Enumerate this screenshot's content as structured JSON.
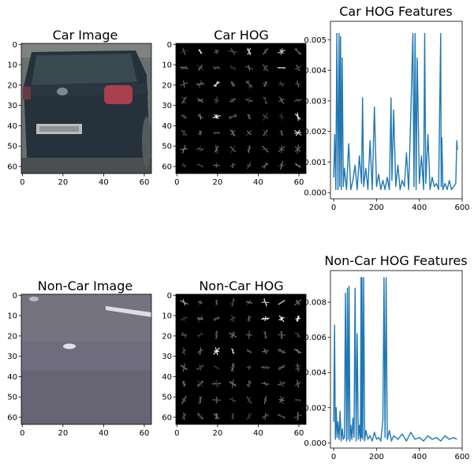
{
  "panels": [
    {
      "id": "car-image",
      "kind": "image",
      "title": "Car Image",
      "xticks": [
        "0",
        "20",
        "40",
        "60"
      ],
      "yticks": [
        "0",
        "10",
        "20",
        "30",
        "40",
        "50",
        "60"
      ]
    },
    {
      "id": "car-hog",
      "kind": "hog",
      "title": "Car HOG",
      "xticks": [
        "0",
        "20",
        "40",
        "60"
      ],
      "yticks": [
        "0",
        "10",
        "20",
        "30",
        "40",
        "50",
        "60"
      ]
    },
    {
      "id": "car-hog-features",
      "kind": "line",
      "title": "Car HOG Features",
      "xticks": [
        "0",
        "200",
        "400",
        "600"
      ],
      "yticks": [
        "0.000",
        "0.001",
        "0.002",
        "0.003",
        "0.004",
        "0.005"
      ]
    },
    {
      "id": "noncar-image",
      "kind": "image",
      "title": "Non-Car Image",
      "xticks": [
        "0",
        "20",
        "40",
        "60"
      ],
      "yticks": [
        "0",
        "10",
        "20",
        "30",
        "40",
        "50",
        "60"
      ]
    },
    {
      "id": "noncar-hog",
      "kind": "hog",
      "title": "Non-Car HOG",
      "xticks": [
        "0",
        "20",
        "40",
        "60"
      ],
      "yticks": [
        "0",
        "10",
        "20",
        "30",
        "40",
        "50",
        "60"
      ]
    },
    {
      "id": "noncar-hog-features",
      "kind": "line",
      "title": "Non-Car HOG Features",
      "xticks": [
        "0",
        "200",
        "400",
        "600"
      ],
      "yticks": [
        "0.000",
        "0.002",
        "0.004",
        "0.006",
        "0.008"
      ]
    }
  ],
  "chart_data": [
    {
      "type": "image",
      "title": "Car Image",
      "xlim": [
        0,
        64
      ],
      "ylim": [
        64,
        0
      ],
      "description_colors": {
        "background": "#6b6f70",
        "car_body": "#23303a",
        "plate": "#b9bcbd",
        "tail_light": "#b04450"
      }
    },
    {
      "type": "heatmap",
      "title": "Car HOG",
      "xlim": [
        0,
        64
      ],
      "ylim": [
        64,
        0
      ],
      "grid_cells": [
        8,
        8
      ],
      "colormap": "gray"
    },
    {
      "type": "line",
      "title": "Car HOG Features",
      "xlim": [
        -15,
        600
      ],
      "ylim": [
        -0.0002,
        0.0056
      ],
      "color": "#1f77b4",
      "series": [
        {
          "x": [
            0,
            5,
            10,
            15,
            20,
            25,
            28,
            32,
            36,
            40,
            45,
            50,
            60,
            70,
            80,
            90,
            100,
            110,
            120,
            130,
            135,
            140,
            150,
            160,
            170,
            180,
            190,
            200,
            210,
            220,
            230,
            240,
            250,
            260,
            268,
            272,
            280,
            290,
            300,
            310,
            320,
            330,
            340,
            350,
            360,
            370,
            375,
            380,
            385,
            390,
            400,
            410,
            420,
            425,
            430,
            440,
            450,
            460,
            470,
            480,
            490,
            500,
            502,
            505,
            510,
            520,
            530,
            540,
            550,
            560,
            570,
            575,
            578
          ],
          "y": [
            0.0005,
            0.0019,
            0.0001,
            0.0052,
            0.0001,
            0.0052,
            0.0002,
            0.0051,
            0.0001,
            0.0044,
            0.0002,
            0.0008,
            0.0001,
            0.0016,
            0.0001,
            0.0004,
            0.0009,
            0.0001,
            0.0012,
            0.0003,
            0.0031,
            0.0002,
            0.0008,
            0.0001,
            0.0017,
            0.0001,
            0.0028,
            0.0002,
            0.0006,
            0.0001,
            0.0004,
            0.0001,
            0.0005,
            0.0001,
            0.0031,
            0.0004,
            0.0027,
            0.0002,
            0.0009,
            0.0001,
            0.0004,
            0.0002,
            0.0013,
            0.0001,
            0.0025,
            0.0052,
            0.0002,
            0.0052,
            0.0001,
            0.0044,
            0.0003,
            0.0012,
            0.0001,
            0.0052,
            0.0003,
            0.0019,
            0.0001,
            0.0005,
            0.0002,
            0.0003,
            0.0001,
            0.0052,
            0.0002,
            0.0018,
            0.0001,
            0.0003,
            0.0001,
            0.0004,
            0.0001,
            0.0002,
            0.0003,
            0.0017,
            0.0014
          ]
        }
      ]
    },
    {
      "type": "image",
      "title": "Non-Car Image",
      "xlim": [
        0,
        64
      ],
      "ylim": [
        64,
        0
      ],
      "description_colors": {
        "background": "#6e6c7c",
        "lane_mark": "#e6e6ea"
      }
    },
    {
      "type": "heatmap",
      "title": "Non-Car HOG",
      "xlim": [
        0,
        64
      ],
      "ylim": [
        64,
        0
      ],
      "grid_cells": [
        8,
        8
      ],
      "colormap": "gray"
    },
    {
      "type": "line",
      "title": "Non-Car HOG Features",
      "xlim": [
        -15,
        600
      ],
      "ylim": [
        -0.0003,
        0.0098
      ],
      "color": "#1f77b4",
      "series": [
        {
          "x": [
            0,
            4,
            8,
            12,
            16,
            20,
            25,
            30,
            35,
            40,
            45,
            50,
            55,
            60,
            64,
            68,
            72,
            76,
            80,
            85,
            90,
            95,
            100,
            105,
            110,
            115,
            120,
            125,
            128,
            130,
            132,
            136,
            140,
            145,
            150,
            160,
            170,
            180,
            190,
            200,
            210,
            220,
            230,
            235,
            240,
            245,
            250,
            260,
            270,
            280,
            300,
            320,
            340,
            360,
            380,
            400,
            420,
            440,
            460,
            480,
            500,
            520,
            540,
            560,
            575
          ],
          "y": [
            0.0012,
            0.0067,
            0.0002,
            0.002,
            0.0003,
            0.0012,
            0.0002,
            0.0018,
            0.0001,
            0.0008,
            0.0002,
            0.0003,
            0.0085,
            0.0001,
            0.0088,
            0.0002,
            0.0089,
            0.0001,
            0.001,
            0.0002,
            0.0014,
            0.0003,
            0.0088,
            0.0001,
            0.0062,
            0.0002,
            0.001,
            0.0001,
            0.0094,
            0.0003,
            0.0094,
            0.0002,
            0.0094,
            0.0001,
            0.0007,
            0.0002,
            0.0004,
            0.0001,
            0.0006,
            0.0002,
            0.0003,
            0.0001,
            0.0013,
            0.0094,
            0.0003,
            0.0094,
            0.0002,
            0.0007,
            0.0001,
            0.0004,
            0.0002,
            0.0005,
            0.0001,
            0.0006,
            0.0002,
            0.0003,
            0.0001,
            0.0004,
            0.0002,
            0.0003,
            0.0001,
            0.0004,
            0.0002,
            0.0003,
            0.0002
          ]
        }
      ]
    }
  ]
}
